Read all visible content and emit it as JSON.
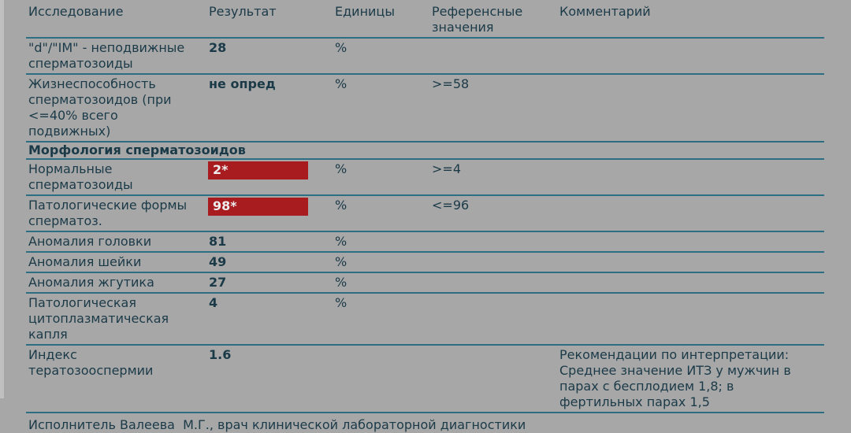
{
  "theme": {
    "background": "#a7a7a7",
    "edge_strip": "#c0c0c0",
    "text_color": "#1b3a48",
    "line_color": "#2e6e83",
    "alert_background": "#a81c20",
    "alert_text": "#ededed"
  },
  "table": {
    "columns": [
      {
        "key": "name",
        "label": "Исследование"
      },
      {
        "key": "result",
        "label": "Результат"
      },
      {
        "key": "units",
        "label": "Единицы"
      },
      {
        "key": "reference",
        "label": "Референсные значения"
      },
      {
        "key": "comment",
        "label": "Комментарий"
      }
    ],
    "rows": [
      {
        "type": "row",
        "name": "\"d\"/\"IM\" - неподвижные сперматозоиды",
        "result": "28",
        "flagged": false,
        "units": "%",
        "reference": "",
        "comment": ""
      },
      {
        "type": "row",
        "name": "Жизнеспособность сперматозоидов (при <=40% всего подвижных)",
        "result": "не опред",
        "flagged": false,
        "units": "%",
        "reference": ">=58",
        "comment": ""
      },
      {
        "type": "section",
        "title": "Морфология сперматозоидов"
      },
      {
        "type": "row",
        "name": "Нормальные сперматозоиды",
        "result": "2*",
        "flagged": true,
        "units": "%",
        "reference": ">=4",
        "comment": ""
      },
      {
        "type": "row",
        "name": "Патологические формы сперматоз.",
        "result": "98*",
        "flagged": true,
        "units": "%",
        "reference": "<=96",
        "comment": ""
      },
      {
        "type": "row",
        "name": "Аномалия головки",
        "result": "81",
        "flagged": false,
        "units": "%",
        "reference": "",
        "comment": ""
      },
      {
        "type": "row",
        "name": "Аномалия шейки",
        "result": "49",
        "flagged": false,
        "units": "%",
        "reference": "",
        "comment": ""
      },
      {
        "type": "row",
        "name": "Аномалия жгутика",
        "result": "27",
        "flagged": false,
        "units": "%",
        "reference": "",
        "comment": ""
      },
      {
        "type": "row",
        "name": "Патологическая цитоплазматическая капля",
        "result": "4",
        "flagged": false,
        "units": "%",
        "reference": "",
        "comment": ""
      },
      {
        "type": "row",
        "name": "Индекс тератозооспермии",
        "result": "1.6",
        "flagged": false,
        "units": "",
        "reference": "",
        "comment": "Рекомендации по интерпретации: Среднее значение ИТЗ у мужчин в парах с бесплодием 1,8; в фертильных парах 1,5"
      }
    ]
  },
  "footer": {
    "text": "Исполнитель Валеева  М.Г., врач клинической лабораторной диагностики"
  }
}
